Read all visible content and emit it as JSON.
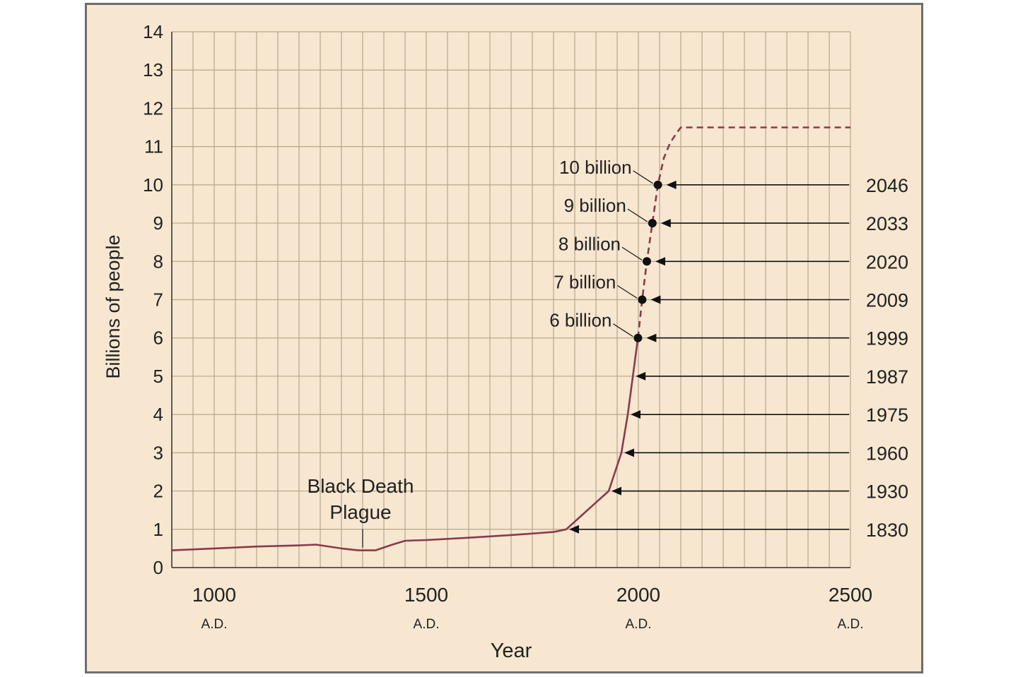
{
  "chart_data": {
    "type": "line",
    "title": "",
    "xlabel": "Year",
    "ylabel": "Billions of people",
    "xlim": [
      900,
      2500
    ],
    "ylim": [
      0,
      14
    ],
    "grid": true,
    "x_ticks": [
      {
        "value": 1000,
        "label": "1000",
        "sublabel": "A.D."
      },
      {
        "value": 1500,
        "label": "1500",
        "sublabel": "A.D."
      },
      {
        "value": 2000,
        "label": "2000",
        "sublabel": "A.D."
      },
      {
        "value": 2500,
        "label": "2500",
        "sublabel": "A.D."
      }
    ],
    "y_ticks": [
      0,
      1,
      2,
      3,
      4,
      5,
      6,
      7,
      8,
      9,
      10,
      11,
      12,
      13,
      14
    ],
    "series": [
      {
        "style": "solid",
        "color": "#8a3a4a",
        "x": [
          900,
          1000,
          1100,
          1200,
          1240,
          1300,
          1340,
          1380,
          1420,
          1450,
          1500,
          1600,
          1700,
          1800,
          1830,
          1860,
          1900,
          1930,
          1945,
          1960,
          1975,
          1987,
          1999
        ],
        "y": [
          0.45,
          0.5,
          0.55,
          0.58,
          0.6,
          0.5,
          0.45,
          0.45,
          0.6,
          0.7,
          0.72,
          0.78,
          0.85,
          0.93,
          1.0,
          1.3,
          1.7,
          2.0,
          2.5,
          3.0,
          4.0,
          5.0,
          6.0
        ]
      },
      {
        "style": "dashed",
        "color": "#8a3a4a",
        "x": [
          1999,
          2009,
          2020,
          2033,
          2046,
          2060,
          2075,
          2090,
          2100,
          2200,
          2300,
          2400,
          2500
        ],
        "y": [
          6.0,
          7.0,
          8.0,
          9.0,
          10.0,
          10.7,
          11.1,
          11.35,
          11.5,
          11.5,
          11.5,
          11.5,
          11.5
        ]
      }
    ],
    "milestones": [
      {
        "value": 1,
        "year": "1830",
        "x": 1830,
        "label": ""
      },
      {
        "value": 2,
        "year": "1930",
        "x": 1930,
        "label": ""
      },
      {
        "value": 3,
        "year": "1960",
        "x": 1960,
        "label": ""
      },
      {
        "value": 4,
        "year": "1975",
        "x": 1975,
        "label": ""
      },
      {
        "value": 5,
        "year": "1987",
        "x": 1987,
        "label": ""
      },
      {
        "value": 6,
        "year": "1999",
        "x": 1999,
        "label": "6 billion"
      },
      {
        "value": 7,
        "year": "2009",
        "x": 2009,
        "label": "7 billion"
      },
      {
        "value": 8,
        "year": "2020",
        "x": 2020,
        "label": "8 billion"
      },
      {
        "value": 9,
        "year": "2033",
        "x": 2033,
        "label": "9 billion"
      },
      {
        "value": 10,
        "year": "2046",
        "x": 2046,
        "label": "10 billion"
      }
    ],
    "annotations": [
      {
        "lines": [
          "Black Death",
          "Plague"
        ],
        "x": 1350,
        "y": 0.45
      }
    ],
    "colors": {
      "background": "#f7e7d0",
      "grid": "#b8a68e",
      "axis": "#333333",
      "line": "#8a3a4a"
    }
  }
}
